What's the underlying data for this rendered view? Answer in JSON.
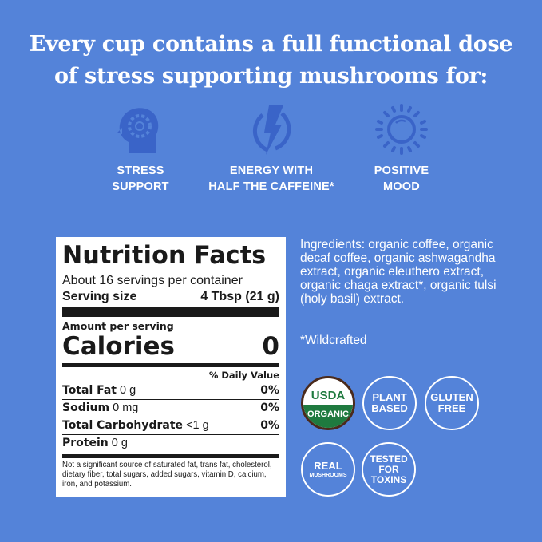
{
  "headline": {
    "line1": "Every cup contains a full functional dose",
    "line2": "of stress supporting mushrooms for:"
  },
  "benefits": [
    {
      "icon": "head-gear-icon",
      "line1": "STRESS",
      "line2": "SUPPORT"
    },
    {
      "icon": "lightning-bolt-icon",
      "line1": "ENERGY WITH",
      "line2": "HALF THE CAFFEINE*"
    },
    {
      "icon": "sun-icon",
      "line1": "POSITIVE",
      "line2": "MOOD"
    }
  ],
  "nutrition": {
    "title": "Nutrition Facts",
    "servings": "About 16 servings per container",
    "serving_size_label": "Serving size",
    "serving_size_value": "4 Tbsp (21 g)",
    "amount_per_serving": "Amount per serving",
    "calories_label": "Calories",
    "calories_value": "0",
    "daily_value_header": "% Daily Value",
    "rows": [
      {
        "name": "Total Fat",
        "amount": "0 g",
        "dv": "0%"
      },
      {
        "name": "Sodium",
        "amount": "0 mg",
        "dv": "0%"
      },
      {
        "name": "Total Carbohydrate",
        "amount": "<1 g",
        "dv": "0%"
      },
      {
        "name": "Protein",
        "amount": "0 g",
        "dv": ""
      }
    ],
    "footnote": "Not a significant source of saturated fat, trans fat, cholesterol, dietary fiber, total sugars, added sugars, vitamin D, calcium, iron, and potassium."
  },
  "ingredients": "Ingredients: organic coffee, organic decaf coffee, organic ashwagandha extract, organic eleuthero extract, organic chaga extract*, organic tulsi (holy basil) extract.",
  "wildcrafted_note": "*Wildcrafted",
  "badges": {
    "usda_top": "USDA",
    "usda_bottom": "ORGANIC",
    "plant_based": [
      "PLANT",
      "BASED"
    ],
    "gluten_free": [
      "GLUTEN",
      "FREE"
    ],
    "real_mushrooms": [
      "REAL",
      "MUSHROOMS"
    ],
    "tested": [
      "TESTED",
      "FOR",
      "TOXINS"
    ]
  },
  "colors": {
    "background": "#5483d9",
    "icon": "#3a64c8",
    "usda_green": "#1f7a3f"
  }
}
